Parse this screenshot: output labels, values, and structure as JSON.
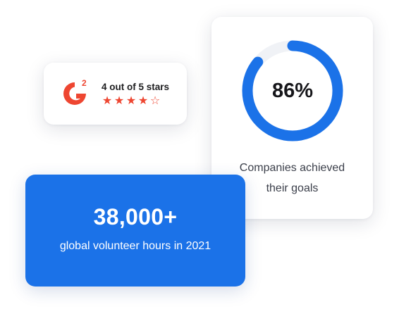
{
  "rating_card": {
    "logo_icon": "g2-logo-icon",
    "logo_text": "G2",
    "text": "4 out of 5 stars",
    "rating": 4,
    "max_rating": 5,
    "star_color": "#ee4631",
    "logo_color": "#ee4631"
  },
  "percent_card": {
    "value_text": "86%",
    "value": 0.86,
    "caption_line1": "Companies achieved",
    "caption_line2": "their goals",
    "ring_color": "#1b72e8",
    "track_color": "#f0f2f6"
  },
  "stat_card": {
    "value_text": "38,000+",
    "caption": "global volunteer hours in 2021",
    "background": "#1b72e8"
  }
}
